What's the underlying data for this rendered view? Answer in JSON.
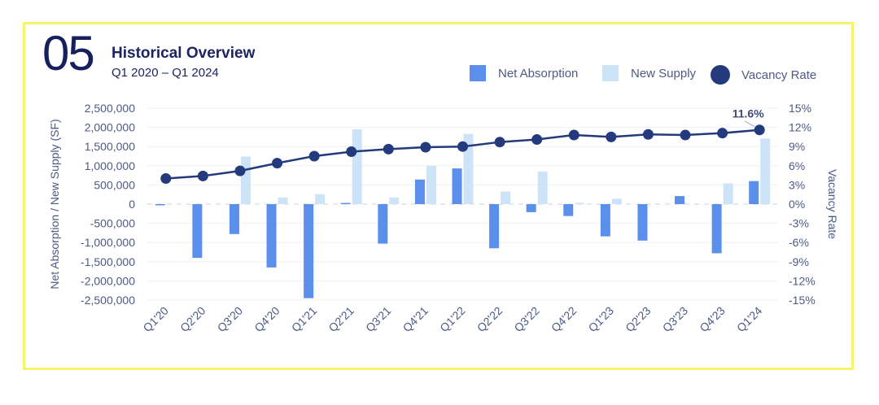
{
  "header": {
    "number": "05",
    "title": "Historical Overview",
    "subtitle": "Q1 2020 – Q1 2024"
  },
  "legend": {
    "net_absorption": "Net Absorption",
    "new_supply": "New Supply",
    "vacancy_rate": "Vacancy Rate"
  },
  "colors": {
    "net_absorption": "#5b8fec",
    "new_supply": "#cde3f8",
    "vacancy_rate": "#233a7c",
    "axis_text": "#4d5a86",
    "frame": "#f5f56a"
  },
  "chart_data": {
    "type": "bar",
    "title": "Historical Overview",
    "subtitle": "Q1 2020 – Q1 2024",
    "xlabel": "",
    "ylabel": "Net Absorption / New Supply (SF)",
    "y2label": "Vacancy Rate",
    "ylim": [
      -2500000,
      2500000
    ],
    "y2lim": [
      -15,
      15
    ],
    "y_ticks": [
      "2,500,000",
      "2,000,000",
      "1,500,000",
      "1,000,000",
      "500,000",
      "0",
      "-500,000",
      "-1,000,000",
      "-1,500,000",
      "-2,000,000",
      "-2,500,000"
    ],
    "y2_ticks": [
      "15%",
      "12%",
      "9%",
      "6%",
      "3%",
      "0%",
      "-3%",
      "-6%",
      "-9%",
      "-12%",
      "-15%"
    ],
    "categories": [
      "Q1'20",
      "Q2'20",
      "Q3'20",
      "Q4'20",
      "Q1'21",
      "Q2'21",
      "Q3'21",
      "Q4'21",
      "Q1'22",
      "Q2'22",
      "Q3'22",
      "Q4'22",
      "Q1'23",
      "Q2'23",
      "Q3'23",
      "Q4'23",
      "Q1'24"
    ],
    "series": [
      {
        "name": "Net Absorption",
        "type": "bar",
        "axis": "left",
        "values": [
          -30000,
          -1400000,
          -780000,
          -1650000,
          -2450000,
          30000,
          -1030000,
          640000,
          930000,
          -1150000,
          -210000,
          -310000,
          -840000,
          -950000,
          210000,
          -1280000,
          600000
        ]
      },
      {
        "name": "New Supply",
        "type": "bar",
        "axis": "left",
        "values": [
          0,
          0,
          1240000,
          170000,
          260000,
          1950000,
          170000,
          1000000,
          1830000,
          330000,
          850000,
          30000,
          140000,
          0,
          0,
          540000,
          1710000
        ]
      },
      {
        "name": "Vacancy Rate",
        "type": "line",
        "axis": "right",
        "unit": "%",
        "values": [
          4.0,
          4.4,
          5.2,
          6.4,
          7.5,
          8.2,
          8.6,
          8.9,
          9.0,
          9.7,
          10.1,
          10.8,
          10.5,
          10.9,
          10.8,
          11.1,
          11.6
        ]
      }
    ],
    "annotations": [
      {
        "series": "Vacancy Rate",
        "category": "Q1'24",
        "text": "11.6%"
      }
    ],
    "grid": true,
    "legend_position": "top-right"
  }
}
